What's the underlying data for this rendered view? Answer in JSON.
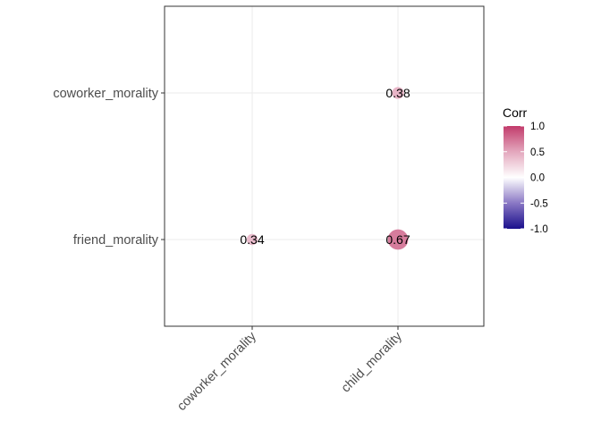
{
  "chart_data": {
    "type": "scatter",
    "subtype": "correlogram",
    "x_categories": [
      "coworker_morality",
      "child_morality"
    ],
    "y_categories": [
      "friend_morality",
      "coworker_morality"
    ],
    "cells": [
      {
        "x": "coworker_morality",
        "y": "coworker_morality",
        "value": null,
        "label": ""
      },
      {
        "x": "child_morality",
        "y": "coworker_morality",
        "value": 0.38,
        "label": "0.38"
      },
      {
        "x": "coworker_morality",
        "y": "friend_morality",
        "value": 0.34,
        "label": "0.34"
      },
      {
        "x": "child_morality",
        "y": "friend_morality",
        "value": 0.67,
        "label": "0.67"
      }
    ],
    "legend": {
      "title": "Corr",
      "ticks": [
        "1.0",
        "0.5",
        "0.0",
        "-0.5",
        "-1.0"
      ],
      "tick_values": [
        1.0,
        0.5,
        0.0,
        -0.5,
        -1.0
      ],
      "range": [
        -1,
        1
      ],
      "position": "right"
    },
    "grid": true
  },
  "colors": {
    "low": "#1a0f8c",
    "mid": "#ffffff",
    "high": "#c23b6b",
    "panel_border": "#333333",
    "gridline": "#ebebeb"
  }
}
